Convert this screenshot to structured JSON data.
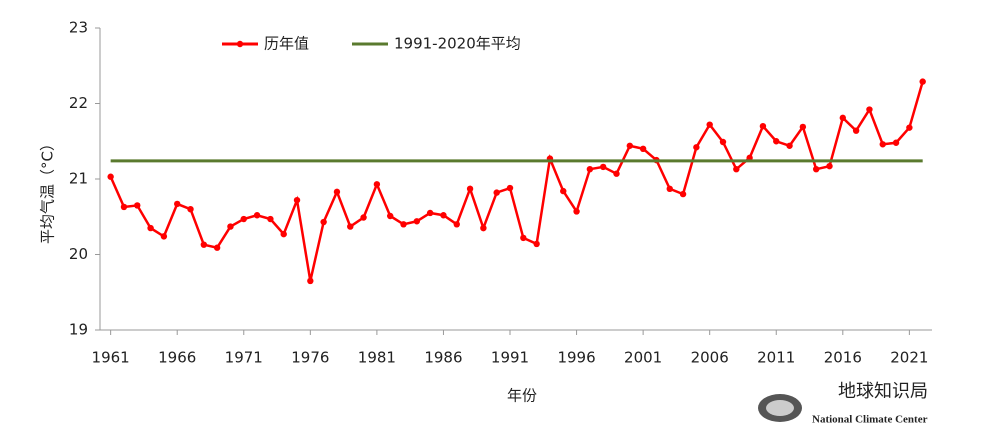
{
  "chart_data": {
    "type": "line",
    "ylabel": "平均气温（°C）",
    "xlabel": "年份",
    "x": [
      1961,
      1962,
      1963,
      1964,
      1965,
      1966,
      1967,
      1968,
      1969,
      1970,
      1971,
      1972,
      1973,
      1974,
      1975,
      1976,
      1977,
      1978,
      1979,
      1980,
      1981,
      1982,
      1983,
      1984,
      1985,
      1986,
      1987,
      1988,
      1989,
      1990,
      1991,
      1992,
      1993,
      1994,
      1995,
      1996,
      1997,
      1998,
      1999,
      2000,
      2001,
      2002,
      2003,
      2004,
      2005,
      2006,
      2007,
      2008,
      2009,
      2010,
      2011,
      2012,
      2013,
      2014,
      2015,
      2016,
      2017,
      2018,
      2019,
      2020,
      2021,
      2022
    ],
    "series": [
      {
        "name": "历年值",
        "color": "#ff0000",
        "values": [
          21.03,
          20.63,
          20.65,
          20.35,
          20.24,
          20.67,
          20.6,
          20.13,
          20.09,
          20.37,
          20.47,
          20.52,
          20.47,
          20.27,
          20.72,
          19.65,
          20.43,
          20.83,
          20.37,
          20.49,
          20.93,
          20.51,
          20.4,
          20.44,
          20.55,
          20.52,
          20.4,
          20.87,
          20.35,
          20.82,
          20.88,
          20.22,
          20.14,
          21.27,
          20.84,
          20.57,
          21.13,
          21.16,
          21.07,
          21.44,
          21.4,
          21.25,
          20.87,
          20.8,
          21.42,
          21.72,
          21.49,
          21.13,
          21.28,
          21.7,
          21.5,
          21.44,
          21.69,
          21.13,
          21.17,
          21.81,
          21.64,
          21.92,
          21.46,
          21.48,
          21.68,
          22.29
        ]
      },
      {
        "name": "1991-2020年平均",
        "color": "#5a7a2e",
        "value": 21.24
      }
    ],
    "xlim": [
      1960.2,
      2022.7
    ],
    "xticks": [
      1961,
      1966,
      1971,
      1976,
      1981,
      1986,
      1991,
      1996,
      2001,
      2006,
      2011,
      2016,
      2021
    ],
    "ylim": [
      19,
      23
    ],
    "yticks": [
      19,
      20,
      21,
      22,
      23
    ],
    "annotations": [
      "地球知识局",
      "National Climate Center"
    ]
  }
}
